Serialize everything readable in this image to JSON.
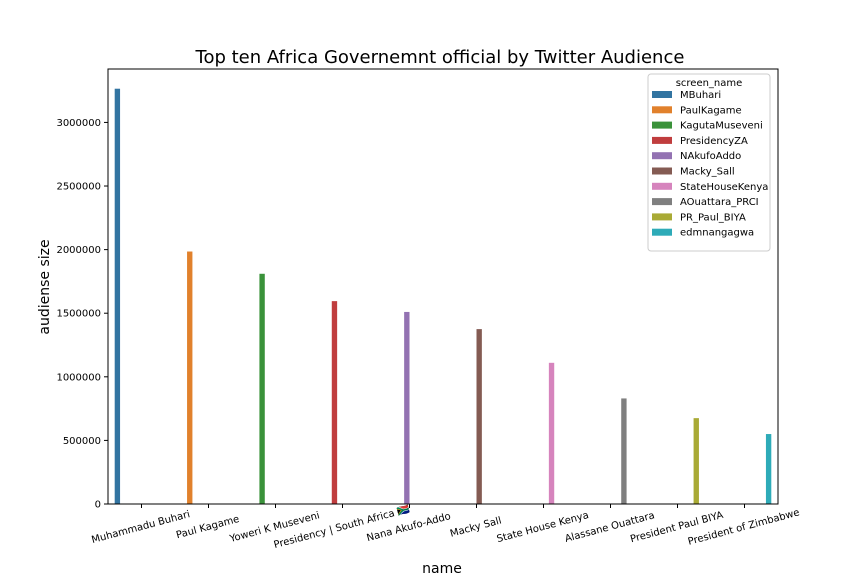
{
  "chart_data": {
    "type": "bar",
    "title": "Top ten Africa Governemnt official by Twitter Audience",
    "xlabel": "name",
    "ylabel": "audiense size",
    "ylim": [
      0,
      3420000
    ],
    "yticks": [
      0,
      500000,
      1000000,
      1500000,
      2000000,
      2500000,
      3000000
    ],
    "ytick_labels": [
      "0",
      "500000",
      "1000000",
      "1500000",
      "2000000",
      "2500000",
      "3000000"
    ],
    "categories": [
      "Muhammadu Buhari",
      "Paul Kagame",
      "Yoweri K Museveni",
      "Presidency | South Africa 🇿🇦",
      "Nana Akufo-Addo",
      "Macky Sall",
      "State House Kenya",
      "Alassane Ouattara",
      "President Paul BIYA",
      "President of Zimbabwe"
    ],
    "legend_title": "screen_name",
    "legend_position": "top-right",
    "series": [
      {
        "name": "MBuhari",
        "color": "#3274a1",
        "values": [
          3265000,
          0,
          0,
          0,
          0,
          0,
          0,
          0,
          0,
          0
        ]
      },
      {
        "name": "PaulKagame",
        "color": "#e1812c",
        "values": [
          0,
          1985000,
          0,
          0,
          0,
          0,
          0,
          0,
          0,
          0
        ]
      },
      {
        "name": "KagutaMuseveni",
        "color": "#3a923a",
        "values": [
          0,
          0,
          1810000,
          0,
          0,
          0,
          0,
          0,
          0,
          0
        ]
      },
      {
        "name": "PresidencyZA",
        "color": "#c03d3e",
        "values": [
          0,
          0,
          0,
          1595000,
          0,
          0,
          0,
          0,
          0,
          0
        ]
      },
      {
        "name": "NAkufoAddo",
        "color": "#9372b2",
        "values": [
          0,
          0,
          0,
          0,
          1510000,
          0,
          0,
          0,
          0,
          0
        ]
      },
      {
        "name": "Macky_Sall",
        "color": "#845b53",
        "values": [
          0,
          0,
          0,
          0,
          0,
          1375000,
          0,
          0,
          0,
          0
        ]
      },
      {
        "name": "StateHouseKenya",
        "color": "#d684bd",
        "values": [
          0,
          0,
          0,
          0,
          0,
          0,
          1110000,
          0,
          0,
          0
        ]
      },
      {
        "name": "AOuattara_PRCI",
        "color": "#7f7f7f",
        "values": [
          0,
          0,
          0,
          0,
          0,
          0,
          0,
          830000,
          0,
          0
        ]
      },
      {
        "name": "PR_Paul_BIYA",
        "color": "#a9aa35",
        "values": [
          0,
          0,
          0,
          0,
          0,
          0,
          0,
          0,
          675000,
          0
        ]
      },
      {
        "name": "edmnangagwa",
        "color": "#2eabb8",
        "values": [
          0,
          0,
          0,
          0,
          0,
          0,
          0,
          0,
          0,
          550000
        ]
      }
    ],
    "grid": false
  }
}
